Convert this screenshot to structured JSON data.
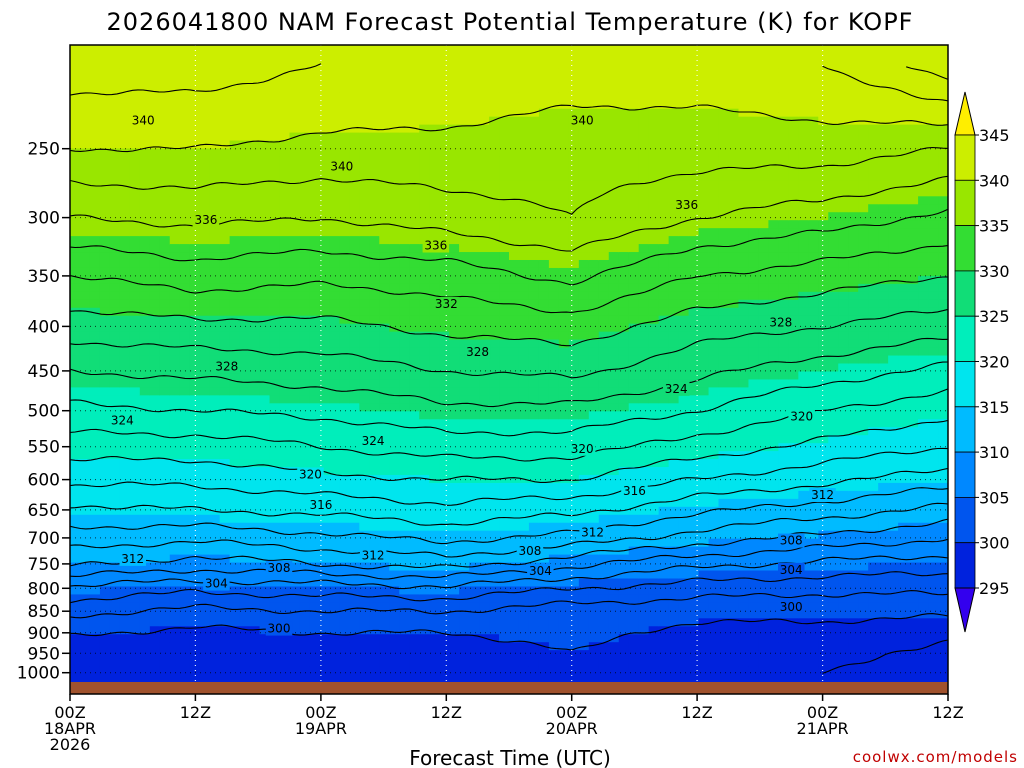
{
  "chart_data": {
    "type": "heatmap",
    "title": "2026041800 NAM Forecast Potential Temperature (K) for KOPF",
    "xlabel": "Forecast Time (UTC)",
    "credit": "coolwx.com/models",
    "y_ticks": [
      250,
      300,
      350,
      400,
      450,
      500,
      550,
      600,
      650,
      700,
      750,
      800,
      850,
      900,
      950,
      1000
    ],
    "y_axis": "pressure (hPa), inverted",
    "ylim": [
      1025,
      190
    ],
    "x_range_hours": [
      0,
      84
    ],
    "x_ticks": [
      {
        "hour": 0,
        "line1": "00Z",
        "line2": "18APR",
        "line3": "2026"
      },
      {
        "hour": 12,
        "line1": "12Z",
        "line2": "",
        "line3": ""
      },
      {
        "hour": 24,
        "line1": "00Z",
        "line2": "19APR",
        "line3": ""
      },
      {
        "hour": 36,
        "line1": "12Z",
        "line2": "",
        "line3": ""
      },
      {
        "hour": 48,
        "line1": "00Z",
        "line2": "20APR",
        "line3": ""
      },
      {
        "hour": 60,
        "line1": "12Z",
        "line2": "",
        "line3": ""
      },
      {
        "hour": 72,
        "line1": "00Z",
        "line2": "21APR",
        "line3": ""
      },
      {
        "hour": 84,
        "line1": "12Z",
        "line2": "",
        "line3": ""
      }
    ],
    "colorbar": {
      "ticks": [
        345,
        340,
        335,
        330,
        325,
        320,
        315,
        310,
        305,
        300,
        295
      ],
      "bands": [
        {
          "from": 340,
          "to": 345,
          "color": "#ccee00"
        },
        {
          "from": 335,
          "to": 340,
          "color": "#99e600"
        },
        {
          "from": 330,
          "to": 335,
          "color": "#33dd33"
        },
        {
          "from": 325,
          "to": 330,
          "color": "#11dd77"
        },
        {
          "from": 320,
          "to": 325,
          "color": "#00eebb"
        },
        {
          "from": 315,
          "to": 320,
          "color": "#00e5ee"
        },
        {
          "from": 310,
          "to": 315,
          "color": "#00bbff"
        },
        {
          "from": 305,
          "to": 310,
          "color": "#0088ff"
        },
        {
          "from": 300,
          "to": 305,
          "color": "#0055ee"
        },
        {
          "from": 295,
          "to": 300,
          "color": "#0022dd"
        }
      ],
      "over_color": "#ffee00",
      "under_color": "#3300ee"
    },
    "profile_columns": [
      {
        "hour": 0,
        "levels": [
          [
            200,
            343
          ],
          [
            250,
            340
          ],
          [
            300,
            336
          ],
          [
            350,
            332
          ],
          [
            400,
            329
          ],
          [
            450,
            326
          ],
          [
            500,
            323.5
          ],
          [
            550,
            321
          ],
          [
            600,
            318.5
          ],
          [
            650,
            315.5
          ],
          [
            700,
            313
          ],
          [
            750,
            310.5
          ],
          [
            800,
            305.5
          ],
          [
            850,
            302.5
          ],
          [
            900,
            300.2
          ],
          [
            950,
            299
          ],
          [
            1000,
            298.5
          ]
        ]
      },
      {
        "hour": 12,
        "levels": [
          [
            200,
            343
          ],
          [
            250,
            340
          ],
          [
            300,
            336.5
          ],
          [
            350,
            333
          ],
          [
            400,
            329.5
          ],
          [
            450,
            326.5
          ],
          [
            500,
            324
          ],
          [
            550,
            321
          ],
          [
            600,
            318.5
          ],
          [
            650,
            316
          ],
          [
            700,
            312.5
          ],
          [
            750,
            309
          ],
          [
            800,
            304.5
          ],
          [
            850,
            301.5
          ],
          [
            900,
            299.5
          ],
          [
            950,
            298.8
          ],
          [
            1000,
            298.3
          ]
        ]
      },
      {
        "hour": 24,
        "levels": [
          [
            200,
            342
          ],
          [
            250,
            339.5
          ],
          [
            300,
            336
          ],
          [
            350,
            332.5
          ],
          [
            400,
            329.5
          ],
          [
            450,
            327
          ],
          [
            500,
            324.5
          ],
          [
            550,
            322
          ],
          [
            600,
            319.5
          ],
          [
            650,
            316.5
          ],
          [
            700,
            313.5
          ],
          [
            750,
            310
          ],
          [
            800,
            305
          ],
          [
            850,
            302
          ],
          [
            900,
            300
          ],
          [
            950,
            299
          ],
          [
            1000,
            298.5
          ]
        ]
      },
      {
        "hour": 36,
        "levels": [
          [
            200,
            341.5
          ],
          [
            250,
            339.5
          ],
          [
            300,
            337
          ],
          [
            350,
            333
          ],
          [
            400,
            330.5
          ],
          [
            450,
            328
          ],
          [
            500,
            325.5
          ],
          [
            550,
            323
          ],
          [
            600,
            320
          ],
          [
            650,
            317.5
          ],
          [
            700,
            314.5
          ],
          [
            750,
            311
          ],
          [
            800,
            305.5
          ],
          [
            850,
            302
          ],
          [
            900,
            300
          ],
          [
            950,
            299
          ],
          [
            1000,
            298.5
          ]
        ]
      },
      {
        "hour": 48,
        "levels": [
          [
            200,
            341
          ],
          [
            250,
            339
          ],
          [
            300,
            338
          ],
          [
            350,
            334.5
          ],
          [
            400,
            331
          ],
          [
            450,
            328.5
          ],
          [
            500,
            325.5
          ],
          [
            550,
            323
          ],
          [
            600,
            320
          ],
          [
            650,
            316.5
          ],
          [
            700,
            313.5
          ],
          [
            750,
            308.5
          ],
          [
            800,
            304
          ],
          [
            850,
            301
          ],
          [
            900,
            300.5
          ],
          [
            950,
            300
          ],
          [
            1000,
            299.5
          ]
        ]
      },
      {
        "hour": 60,
        "levels": [
          [
            200,
            341
          ],
          [
            250,
            339
          ],
          [
            300,
            336
          ],
          [
            350,
            332
          ],
          [
            400,
            329
          ],
          [
            450,
            326.5
          ],
          [
            500,
            324
          ],
          [
            550,
            321
          ],
          [
            600,
            318
          ],
          [
            650,
            314.5
          ],
          [
            700,
            311
          ],
          [
            750,
            306.5
          ],
          [
            800,
            303
          ],
          [
            850,
            300.5
          ],
          [
            900,
            299.5
          ],
          [
            950,
            299
          ],
          [
            1000,
            298.8
          ]
        ]
      },
      {
        "hour": 72,
        "levels": [
          [
            200,
            342
          ],
          [
            250,
            339
          ],
          [
            300,
            335
          ],
          [
            350,
            331
          ],
          [
            400,
            328
          ],
          [
            450,
            325
          ],
          [
            500,
            322
          ],
          [
            550,
            319.5
          ],
          [
            600,
            316.5
          ],
          [
            650,
            313
          ],
          [
            700,
            309.5
          ],
          [
            750,
            305.5
          ],
          [
            800,
            302.5
          ],
          [
            850,
            300.5
          ],
          [
            900,
            299.5
          ],
          [
            950,
            298.5
          ],
          [
            1000,
            298
          ]
        ]
      },
      {
        "hour": 84,
        "levels": [
          [
            200,
            345
          ],
          [
            250,
            338
          ],
          [
            300,
            333.5
          ],
          [
            350,
            330
          ],
          [
            400,
            327
          ],
          [
            450,
            323.5
          ],
          [
            500,
            320.5
          ],
          [
            550,
            318
          ],
          [
            600,
            315
          ],
          [
            650,
            311.5
          ],
          [
            700,
            308
          ],
          [
            750,
            305
          ],
          [
            800,
            302.5
          ],
          [
            850,
            300.5
          ],
          [
            900,
            298.5
          ],
          [
            950,
            297.5
          ],
          [
            1000,
            297
          ]
        ]
      }
    ],
    "contour_interval": 2,
    "contour_labels": [
      {
        "value": "340",
        "hour": 7,
        "p": 232
      },
      {
        "value": "340",
        "hour": 26,
        "p": 262
      },
      {
        "value": "340",
        "hour": 49,
        "p": 232
      },
      {
        "value": "336",
        "hour": 13,
        "p": 302
      },
      {
        "value": "336",
        "hour": 35,
        "p": 323
      },
      {
        "value": "336",
        "hour": 59,
        "p": 290
      },
      {
        "value": "332",
        "hour": 36,
        "p": 377
      },
      {
        "value": "328",
        "hour": 15,
        "p": 445
      },
      {
        "value": "328",
        "hour": 39,
        "p": 428
      },
      {
        "value": "328",
        "hour": 68,
        "p": 396
      },
      {
        "value": "324",
        "hour": 5,
        "p": 513
      },
      {
        "value": "324",
        "hour": 29,
        "p": 542
      },
      {
        "value": "324",
        "hour": 58,
        "p": 472
      },
      {
        "value": "320",
        "hour": 23,
        "p": 592
      },
      {
        "value": "320",
        "hour": 49,
        "p": 553
      },
      {
        "value": "320",
        "hour": 70,
        "p": 508
      },
      {
        "value": "316",
        "hour": 24,
        "p": 642
      },
      {
        "value": "316",
        "hour": 54,
        "p": 618
      },
      {
        "value": "312",
        "hour": 6,
        "p": 740
      },
      {
        "value": "312",
        "hour": 29,
        "p": 733
      },
      {
        "value": "312",
        "hour": 50,
        "p": 690
      },
      {
        "value": "312",
        "hour": 72,
        "p": 625
      },
      {
        "value": "308",
        "hour": 20,
        "p": 758
      },
      {
        "value": "308",
        "hour": 44,
        "p": 725
      },
      {
        "value": "308",
        "hour": 69,
        "p": 705
      },
      {
        "value": "304",
        "hour": 14,
        "p": 790
      },
      {
        "value": "304",
        "hour": 45,
        "p": 764
      },
      {
        "value": "304",
        "hour": 69,
        "p": 762
      },
      {
        "value": "300",
        "hour": 20,
        "p": 890
      },
      {
        "value": "300",
        "hour": 69,
        "p": 840
      }
    ]
  }
}
